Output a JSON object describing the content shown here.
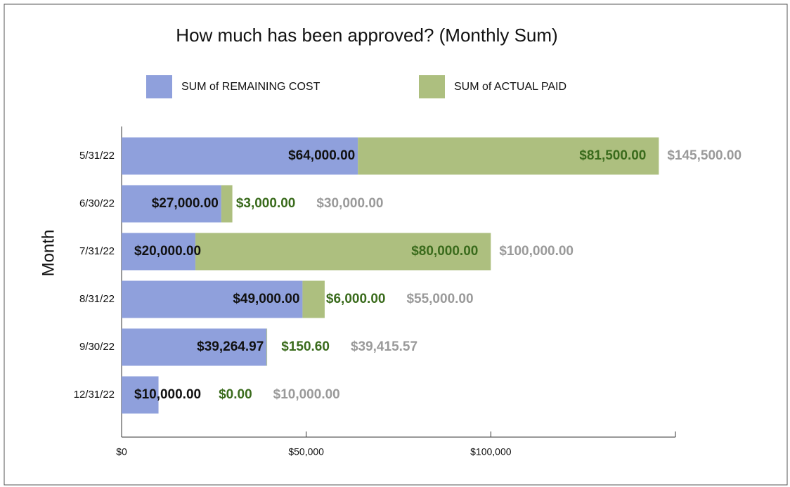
{
  "chart_data": {
    "type": "stacked-barh",
    "title": "How much has been approved? (Monthly Sum)",
    "y_label": "Month",
    "categories": [
      "5/31/22",
      "6/30/22",
      "7/31/22",
      "8/31/22",
      "9/30/22",
      "12/31/22"
    ],
    "series": [
      {
        "name": "SUM of REMAINING COST",
        "color": "#8fa0dc",
        "label_color": "#111111",
        "values": [
          64000,
          27000,
          20000,
          49000,
          39264.97,
          10000
        ],
        "value_labels": [
          "$64,000.00",
          "$27,000.00",
          "$20,000.00",
          "$49,000.00",
          "$39,264.97",
          "$10,000.00"
        ]
      },
      {
        "name": "SUM of ACTUAL PAID",
        "color": "#adbf7f",
        "label_color": "#3a6b1c",
        "values": [
          81500,
          3000,
          80000,
          6000,
          150.6,
          0
        ],
        "value_labels": [
          "$81,500.00",
          "$3,000.00",
          "$80,000.00",
          "$6,000.00",
          "$150.60",
          "$0.00"
        ]
      }
    ],
    "total_labels": [
      "$145,500.00",
      "$30,000.00",
      "$100,000.00",
      "$55,000.00",
      "$39,415.57",
      "$10,000.00"
    ],
    "total_label_color": "#9a9a9a",
    "xlim": [
      0,
      150000
    ],
    "xticks": [
      {
        "value": 0,
        "label": "$0"
      },
      {
        "value": 50000,
        "label": "$50,000"
      },
      {
        "value": 100000,
        "label": "$100,000"
      }
    ]
  }
}
